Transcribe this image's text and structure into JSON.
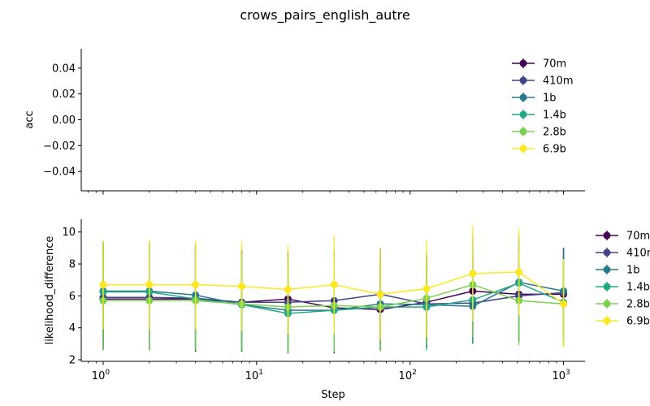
{
  "chart_data": {
    "title": "crows_pairs_english_autre",
    "xlabel": "Step",
    "x": [
      1,
      2,
      4,
      8,
      16,
      32,
      64,
      128,
      256,
      512,
      1000
    ],
    "xscale": "log",
    "xlim": [
      0.72,
      1380
    ],
    "x_ticks": [
      {
        "base": "10",
        "exp": "0",
        "value": 1
      },
      {
        "base": "10",
        "exp": "1",
        "value": 10
      },
      {
        "base": "10",
        "exp": "2",
        "value": 100
      },
      {
        "base": "10",
        "exp": "3",
        "value": 1000
      }
    ],
    "legend_placement": "right",
    "colors": [
      "#440154",
      "#414487",
      "#2a788e",
      "#22a884",
      "#7ad151",
      "#fde725"
    ],
    "panels": [
      {
        "type": "line",
        "ylabel": "acc",
        "ylim": [
          -0.055,
          0.055
        ],
        "y_ticks": [
          {
            "label": "0.04",
            "value": 0.04
          },
          {
            "label": "0.02",
            "value": 0.02
          },
          {
            "label": "0.00",
            "value": 0.0
          },
          {
            "label": "−0.02",
            "value": -0.02
          },
          {
            "label": "−0.04",
            "value": -0.04
          }
        ],
        "series": [
          {
            "name": "70m",
            "values": []
          },
          {
            "name": "410m",
            "values": []
          },
          {
            "name": "1b",
            "values": []
          },
          {
            "name": "1.4b",
            "values": []
          },
          {
            "name": "2.8b",
            "values": []
          },
          {
            "name": "6.9b",
            "values": []
          }
        ]
      },
      {
        "type": "line",
        "ylabel": "likelihood_difference",
        "ylim": [
          1.9,
          10.8
        ],
        "y_ticks": [
          {
            "label": "2",
            "value": 2
          },
          {
            "label": "4",
            "value": 4
          },
          {
            "label": "6",
            "value": 6
          },
          {
            "label": "8",
            "value": 8
          },
          {
            "label": "10",
            "value": 10
          }
        ],
        "series": [
          {
            "name": "70m",
            "values": [
              5.8,
              5.8,
              5.8,
              5.6,
              5.8,
              5.25,
              5.15,
              5.6,
              6.3,
              6.1,
              6.1
            ],
            "err": [
              [
                2.6,
                9.0
              ],
              [
                2.6,
                9.0
              ],
              [
                2.5,
                9.0
              ],
              [
                2.5,
                8.8
              ],
              [
                2.4,
                8.6
              ],
              [
                2.4,
                8.2
              ],
              [
                2.6,
                7.8
              ],
              [
                2.8,
                8.4
              ],
              [
                3.4,
                9.4
              ],
              [
                3.1,
                9.4
              ],
              [
                3.3,
                9.0
              ]
            ]
          },
          {
            "name": "410m",
            "values": [
              5.9,
              5.9,
              5.85,
              5.6,
              5.6,
              5.7,
              6.1,
              5.5,
              5.55,
              6.0,
              6.2
            ],
            "err": [
              [
                2.7,
                9.2
              ],
              [
                2.7,
                9.2
              ],
              [
                2.6,
                9.1
              ],
              [
                2.6,
                8.9
              ],
              [
                2.5,
                8.8
              ],
              [
                2.6,
                8.9
              ],
              [
                3.0,
                9.0
              ],
              [
                2.8,
                8.5
              ],
              [
                3.0,
                8.7
              ],
              [
                3.2,
                9.2
              ],
              [
                3.4,
                9.0
              ]
            ]
          },
          {
            "name": "1b",
            "values": [
              6.3,
              6.3,
              6.05,
              5.45,
              5.1,
              5.1,
              5.5,
              5.45,
              5.35,
              6.85,
              6.3
            ],
            "err": [
              [
                3.0,
                9.4
              ],
              [
                3.0,
                9.4
              ],
              [
                2.8,
                9.2
              ],
              [
                2.6,
                8.6
              ],
              [
                2.4,
                8.1
              ],
              [
                2.5,
                8.0
              ],
              [
                2.8,
                8.3
              ],
              [
                2.8,
                8.2
              ],
              [
                3.1,
                8.2
              ],
              [
                3.6,
                9.5
              ],
              [
                3.4,
                9.0
              ]
            ]
          },
          {
            "name": "1.4b",
            "values": [
              6.25,
              6.25,
              5.8,
              5.45,
              4.9,
              5.1,
              5.3,
              5.3,
              5.75,
              6.8,
              5.6
            ],
            "err": [
              [
                3.0,
                9.4
              ],
              [
                3.0,
                9.4
              ],
              [
                2.8,
                9.0
              ],
              [
                2.6,
                8.5
              ],
              [
                2.4,
                7.8
              ],
              [
                2.5,
                8.0
              ],
              [
                2.6,
                8.1
              ],
              [
                2.6,
                8.1
              ],
              [
                3.0,
                8.8
              ],
              [
                3.5,
                9.8
              ],
              [
                3.0,
                8.3
              ]
            ]
          },
          {
            "name": "2.8b",
            "values": [
              5.7,
              5.7,
              5.7,
              5.5,
              5.3,
              5.4,
              5.3,
              5.85,
              6.7,
              5.7,
              5.5
            ],
            "err": [
              [
                2.6,
                9.0
              ],
              [
                2.6,
                9.0
              ],
              [
                2.6,
                9.0
              ],
              [
                2.6,
                8.6
              ],
              [
                2.4,
                8.4
              ],
              [
                2.5,
                8.5
              ],
              [
                2.5,
                8.3
              ],
              [
                2.9,
                8.8
              ],
              [
                3.4,
                9.9
              ],
              [
                2.9,
                8.8
              ],
              [
                2.8,
                8.3
              ]
            ]
          },
          {
            "name": "6.9b",
            "values": [
              6.7,
              6.7,
              6.7,
              6.6,
              6.4,
              6.7,
              6.1,
              6.45,
              7.4,
              7.5,
              5.5
            ],
            "err": [
              [
                3.9,
                9.5
              ],
              [
                3.9,
                9.5
              ],
              [
                3.9,
                9.5
              ],
              [
                3.8,
                9.4
              ],
              [
                3.6,
                9.2
              ],
              [
                3.6,
                9.8
              ],
              [
                3.2,
                9.0
              ],
              [
                3.4,
                9.5
              ],
              [
                4.4,
                10.4
              ],
              [
                4.8,
                10.2
              ],
              [
                2.8,
                8.3
              ]
            ]
          }
        ]
      }
    ]
  }
}
